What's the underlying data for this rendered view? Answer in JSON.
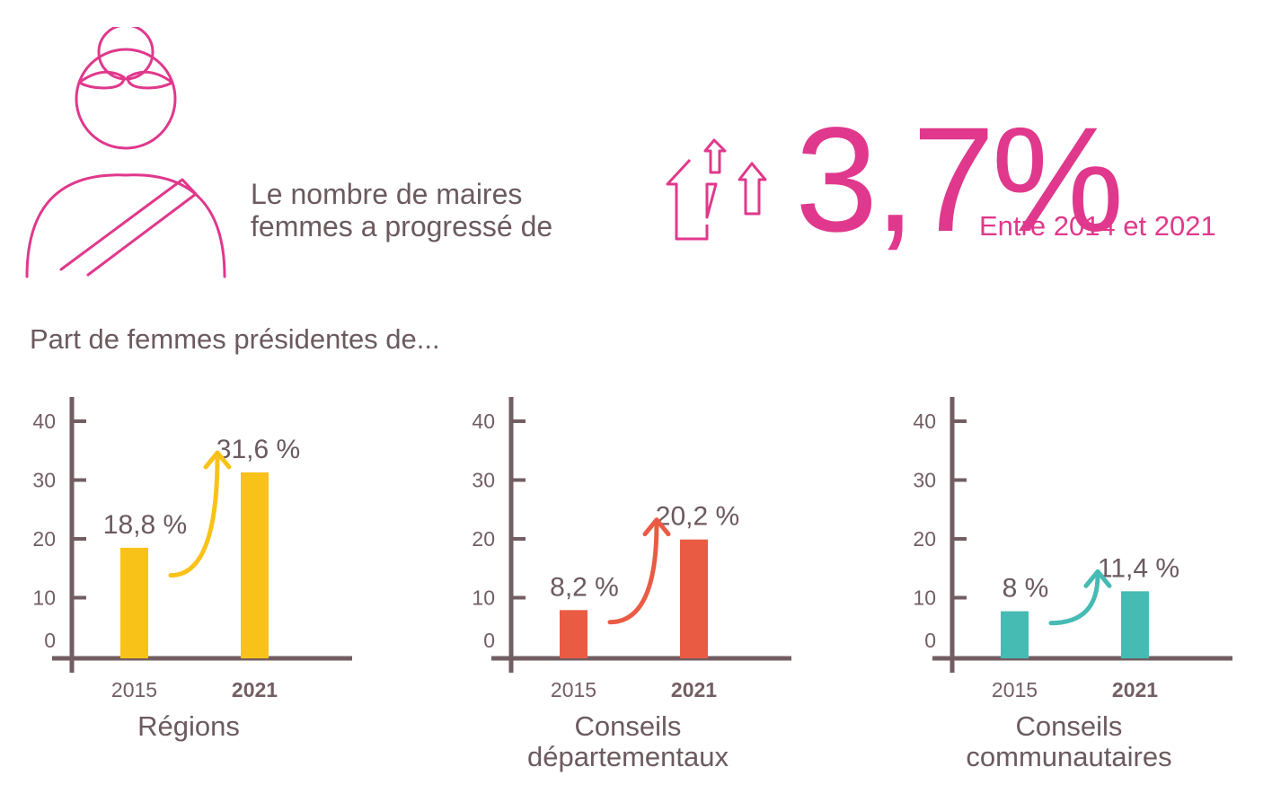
{
  "header": {
    "intro_line1": "Le nombre de maires",
    "intro_line2": "femmes a progressé de",
    "big_value": "3,7%",
    "period": "Entre 2014 et 2021",
    "accent_color": "#e0388c"
  },
  "subtitle": "Part de femmes présidentes de...",
  "icons": {
    "person": "woman-mayor-sash-icon",
    "growth": "up-arrows-icon",
    "trend": "curved-up-arrow-icon"
  },
  "chart_data": [
    {
      "type": "bar",
      "title": "Régions",
      "title_lines": [
        "Régions"
      ],
      "categories": [
        "2015",
        "2021"
      ],
      "values": [
        18.8,
        31.6
      ],
      "value_labels": [
        "18,8 %",
        "31,6 %"
      ],
      "yticks": [
        "0",
        "10",
        "20",
        "30",
        "40"
      ],
      "ylim": [
        0,
        45
      ],
      "color": "#f9c218",
      "grid": false
    },
    {
      "type": "bar",
      "title": "Conseils départementaux",
      "title_lines": [
        "Conseils",
        "départementaux"
      ],
      "categories": [
        "2015",
        "2021"
      ],
      "values": [
        8.2,
        20.2
      ],
      "value_labels": [
        "8,2 %",
        "20,2 %"
      ],
      "yticks": [
        "0",
        "10",
        "20",
        "30",
        "40"
      ],
      "ylim": [
        0,
        45
      ],
      "color": "#ea5b44",
      "grid": false
    },
    {
      "type": "bar",
      "title": "Conseils communautaires",
      "title_lines": [
        "Conseils",
        "communautaires"
      ],
      "categories": [
        "2015",
        "2021"
      ],
      "values": [
        8,
        11.4
      ],
      "value_labels": [
        "8 %",
        "11,4 %"
      ],
      "yticks": [
        "0",
        "10",
        "20",
        "30",
        "40"
      ],
      "ylim": [
        0,
        45
      ],
      "color": "#45bbb3",
      "grid": false
    }
  ]
}
